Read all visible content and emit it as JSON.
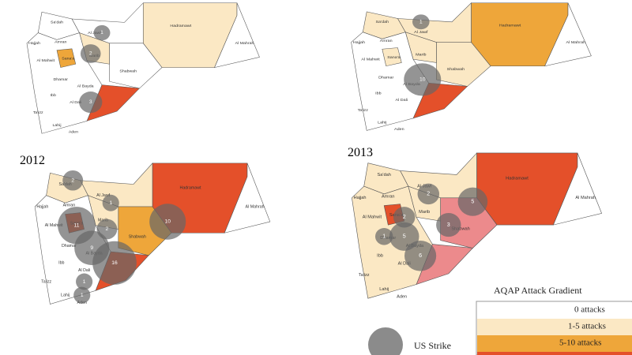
{
  "region_labels": [
    "Sa'dah",
    "Al Jawf",
    "Hadramawt",
    "Al Mahrah",
    "Hajjah",
    "Amran",
    "Sana'a",
    "Marib",
    "Al Mahwit",
    "Dhamar",
    "Shabwah",
    "Al Bayda",
    "Ibb",
    "Al Dali",
    "Ta'izz",
    "Lahij",
    "Aden"
  ],
  "panels": [
    {
      "strikes": [
        1,
        2,
        3
      ]
    },
    {
      "strikes": [
        1,
        10
      ]
    },
    {
      "year": "2012",
      "strikes": [
        2,
        1,
        11,
        2,
        10,
        9,
        16,
        1,
        1
      ]
    },
    {
      "year": "2013",
      "strikes": [
        2,
        5,
        3,
        2,
        5,
        6,
        1
      ]
    }
  ],
  "legend": {
    "title": "AQAP Attack Gradient",
    "items": [
      "0 attacks",
      "1-5 attacks",
      "5-10 attacks"
    ],
    "strike_label": "US Strike"
  }
}
